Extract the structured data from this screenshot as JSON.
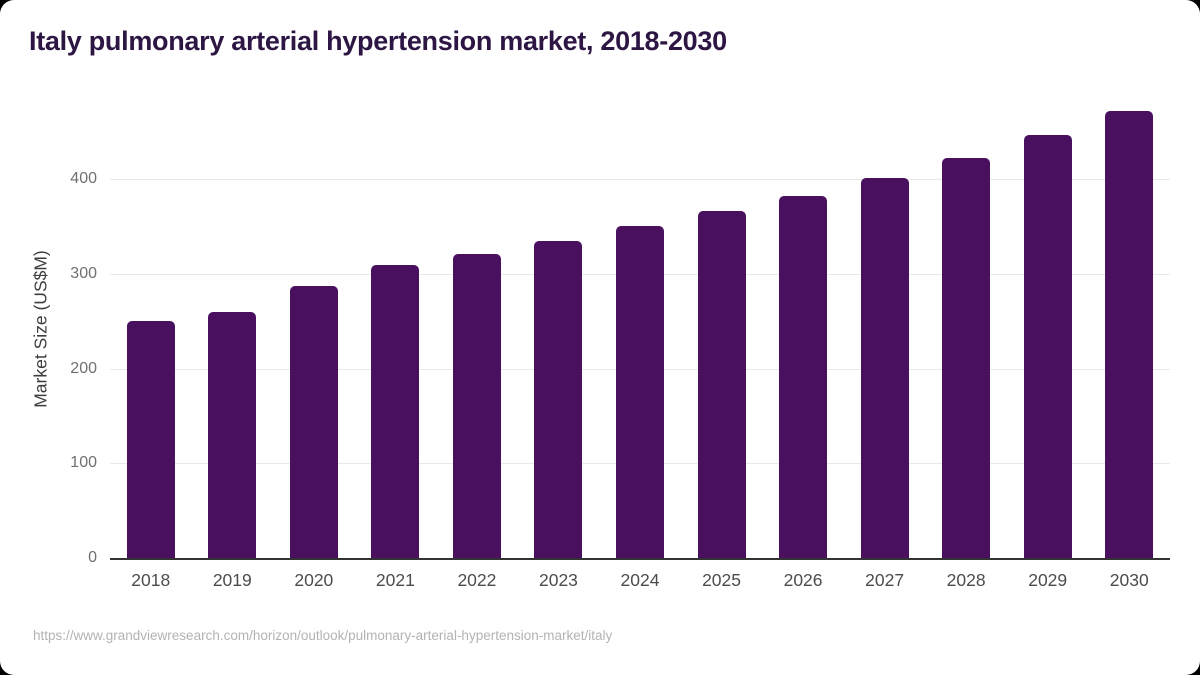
{
  "header": {
    "title": "Italy pulmonary arterial hypertension market, 2018-2030"
  },
  "chart_data": {
    "type": "bar",
    "title": "Italy pulmonary arterial hypertension market, 2018-2030",
    "categories": [
      "2018",
      "2019",
      "2020",
      "2021",
      "2022",
      "2023",
      "2024",
      "2025",
      "2026",
      "2027",
      "2028",
      "2029",
      "2030"
    ],
    "values": [
      250,
      260,
      287,
      309,
      321,
      335,
      350,
      366,
      382,
      401,
      422,
      446,
      472
    ],
    "xlabel": "",
    "ylabel": "Market Size (US$M)",
    "ylim": [
      0,
      483
    ],
    "yticks": [
      0,
      100,
      200,
      300,
      400
    ],
    "grid": true,
    "legend_position": "none",
    "bar_color": "#4a1060",
    "title_color": "#2d1644",
    "gridline_color": "#e8e8e8",
    "axis_line_color": "#333333"
  },
  "footer": {
    "source_url": "https://www.grandviewresearch.com/horizon/outlook/pulmonary-arterial-hypertension-market/italy"
  }
}
